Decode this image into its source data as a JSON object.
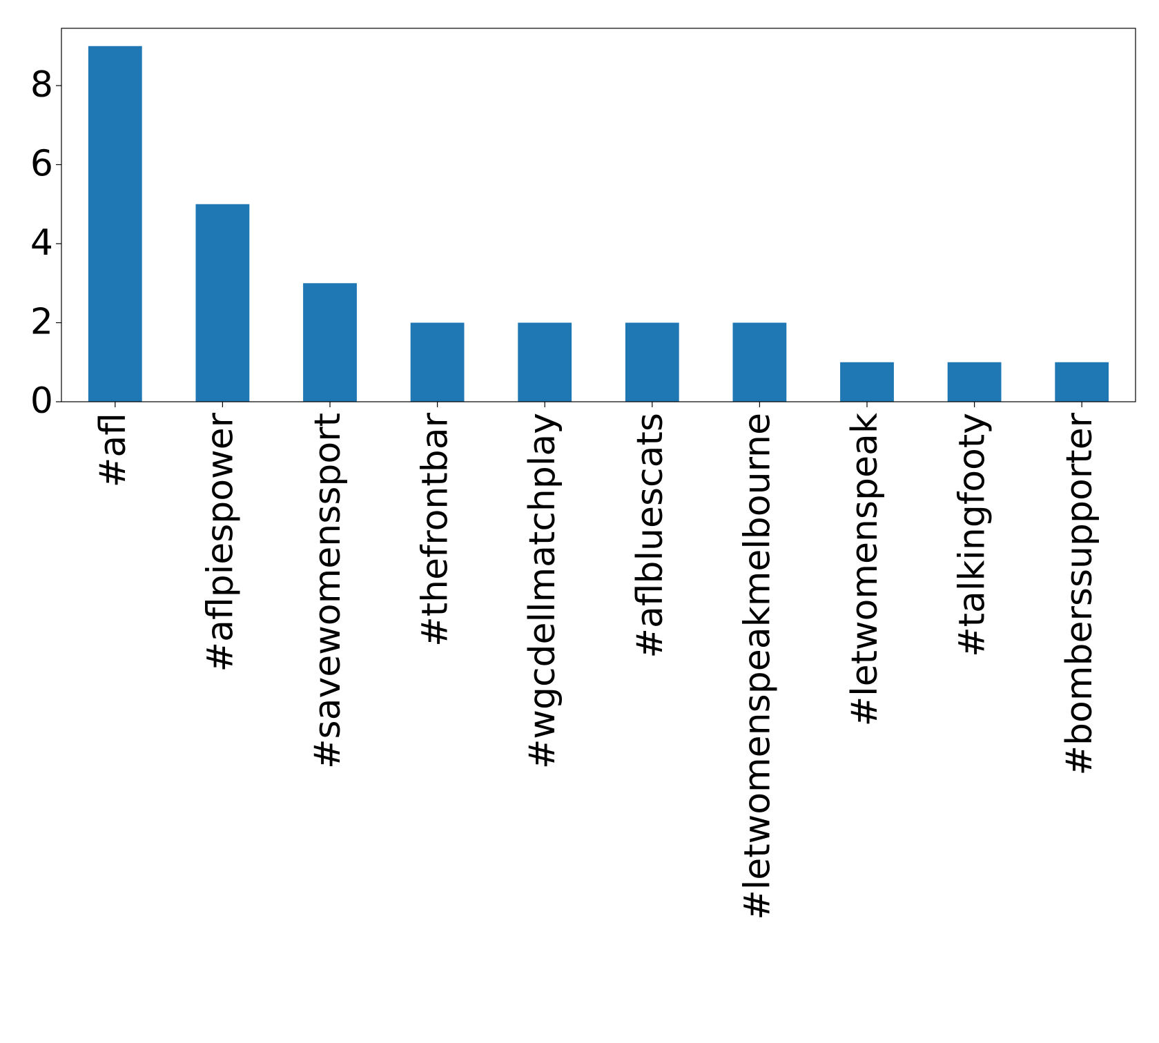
{
  "chart_data": {
    "type": "bar",
    "categories": [
      "#afl",
      "#aflpiespower",
      "#savewomenssport",
      "#thefrontbar",
      "#wgcdellmatchplay",
      "#aflbluescats",
      "#letwomenspeakmelbourne",
      "#letwomenspeak",
      "#talkingfooty",
      "#bomberssupporter"
    ],
    "values": [
      9,
      5,
      3,
      2,
      2,
      2,
      2,
      1,
      1,
      1
    ],
    "color": "#1f77b4",
    "ylim": [
      0,
      9.45
    ],
    "yticks": [
      0,
      2,
      4,
      6,
      8
    ],
    "grid": false
  }
}
